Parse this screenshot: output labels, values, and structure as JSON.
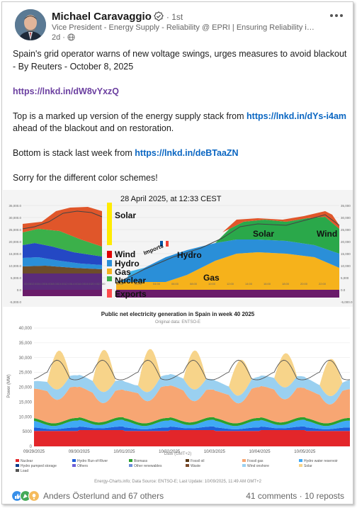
{
  "post": {
    "author_name": "Michael Caravaggio",
    "degree": "· 1st",
    "headline": "Vice President - Energy Supply - Reliability @ EPRI | Ensuring Reliability in Ene...",
    "time": "2d ·",
    "para1": "Spain's grid operator warns of new voltage swings, urges measures to avoid blackout - By Reuters - October 8, 2025",
    "link1": "https://lnkd.in/dW8vYxzQ",
    "para3_pre": "Top is a marked up version of the energy supply stack from ",
    "link2": "https://lnkd.in/dYs-i4am",
    "para3_post": " ahead of the blackout and on restoration.",
    "para4_pre": "Bottom is stack last week from ",
    "link3": "https://lnkd.in/deBTaaZN",
    "para5": "Sorry for the different color schemes!"
  },
  "top_chart": {
    "title": "28 April 2025, at 12:33 CEST",
    "annotations": {
      "solar_left": "Solar",
      "wind_left": "Wind",
      "hydro_left": "Hydro",
      "gas_left": "Gas",
      "nuclear_left": "Nuclear",
      "exports": "Exports",
      "imports": "Imports",
      "hydro_mid": "Hydro",
      "gas_mid": "Gas",
      "solar_right": "Solar",
      "wind_right": "Wind"
    },
    "y_ticks_left": [
      "35,000.0",
      "30,000.0",
      "25,000.0",
      "20,000.0",
      "15,000.0",
      "10,000.0",
      "5,000.0",
      "0.0",
      "-5,000.0"
    ],
    "y_ticks_right": [
      "35,000",
      "30,000",
      "25,000",
      "20,000",
      "15,000",
      "10,000",
      "5,000",
      "0.0",
      "-5,000.0"
    ],
    "x_ticks": [
      "00:00",
      "02:00",
      "04:00",
      "06:00",
      "08:00",
      "10:00",
      "12:00",
      "14:00",
      "16:00",
      "18:00",
      "20:00",
      "22:00",
      "00:00",
      "02:00",
      "04:00",
      "06:00",
      "08:00",
      "10:00",
      "12:00",
      "14:00",
      "16:00",
      "18:00",
      "20:00",
      "22:00"
    ]
  },
  "bottom_chart": {
    "title": "Public net electricity generation in Spain in week 40 2025",
    "subtitle": "Original data: ENTSO-E",
    "ylabel": "Power (MW)",
    "xlabel": "Date (GMT+2)",
    "y_ticks": [
      "40,000",
      "35,000",
      "30,000",
      "25,000",
      "20,000",
      "15,000",
      "10,000",
      "5000",
      "0"
    ],
    "x_ticks": [
      "09/29/2025",
      "09/30/2025",
      "10/01/2025",
      "10/02/2025",
      "10/03/2025",
      "10/04/2025",
      "10/05/2025"
    ],
    "legend": [
      {
        "label": "Nuclear",
        "color": "#e3262a"
      },
      {
        "label": "Hydro Run-of-River",
        "color": "#1f5fd9"
      },
      {
        "label": "Biomass",
        "color": "#2ca02c"
      },
      {
        "label": "Fossil oil",
        "color": "#5a3b1a"
      },
      {
        "label": "Fossil gas",
        "color": "#f7a673"
      },
      {
        "label": "Hydro water reservoir",
        "color": "#3fa9f5"
      },
      {
        "label": "Hydro pumped storage",
        "color": "#0b3c8c"
      },
      {
        "label": "Others",
        "color": "#6b5fd6"
      },
      {
        "label": "Other renewables",
        "color": "#6d8dd9"
      },
      {
        "label": "Waste",
        "color": "#7a4a2a"
      },
      {
        "label": "Wind onshore",
        "color": "#9ad0f0"
      },
      {
        "label": "Solar",
        "color": "#f7d48a"
      },
      {
        "label": "Load",
        "color": "#555555"
      }
    ],
    "source": "Energy-Charts.info; Data Source: ENTSO-E; Last Update: 10/09/2025, 11:49 AM GMT+2"
  },
  "footer": {
    "reactions_text": "Anders Österlund and 67 others",
    "comments": "41 comments",
    "reposts": "10 reposts",
    "separator": " · "
  }
}
